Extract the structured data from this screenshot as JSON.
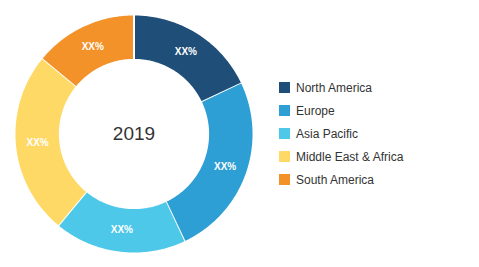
{
  "chart_data": {
    "type": "pie",
    "title": "2019",
    "categories": [
      "North America",
      "Europe",
      "Asia Pacific",
      "Middle East & Africa",
      "South America"
    ],
    "values": [
      18,
      25,
      18,
      25,
      14
    ],
    "colors": [
      "#1f4e79",
      "#2e9fd4",
      "#4dc8e8",
      "#ffd966",
      "#f4922a"
    ],
    "data_labels": true,
    "value_labels": [
      "XX%",
      "XX%",
      "XX%",
      "XX%",
      "XX%"
    ],
    "legend": "right"
  }
}
